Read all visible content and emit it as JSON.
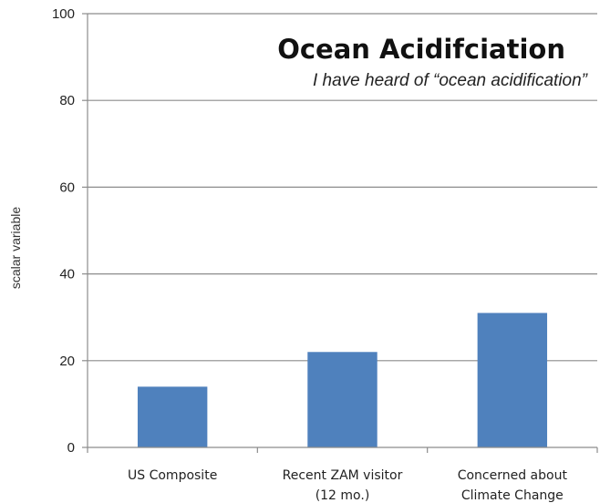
{
  "chart_data": {
    "type": "bar",
    "title": "Ocean Acidifciation",
    "subtitle": "I have heard of “ocean acidification”",
    "xlabel": "",
    "ylabel": "scalar variable",
    "ylim": [
      0,
      100
    ],
    "yticks": [
      0,
      20,
      40,
      60,
      80,
      100
    ],
    "grid": true,
    "categories": [
      [
        "US Composite"
      ],
      [
        "Recent ZAM visitor",
        "(12 mo.)"
      ],
      [
        "Concerned  about",
        "Climate Change"
      ]
    ],
    "values": [
      14,
      22,
      31
    ],
    "bar_color": "#4f81bd",
    "grid_color": "#8c8c8c"
  }
}
